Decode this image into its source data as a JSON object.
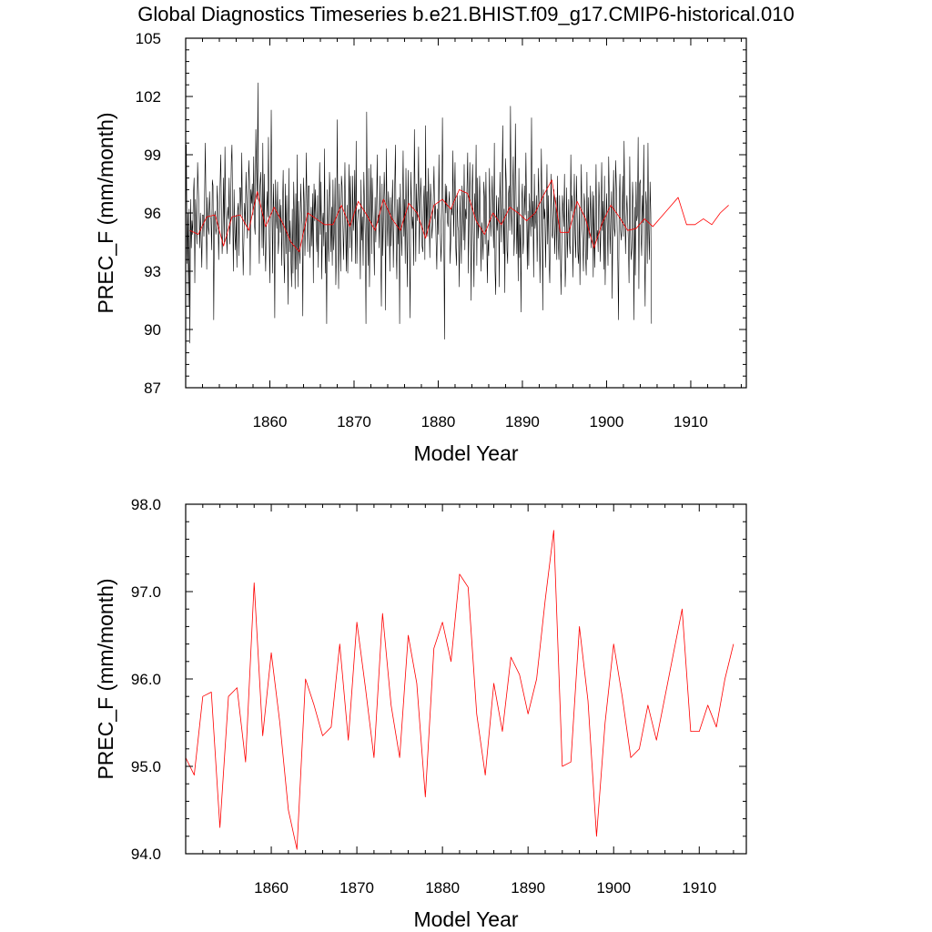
{
  "figure": {
    "title": "Global Diagnostics Timeseries b.e21.BHIST.f09_g17.CMIP6-historical.010"
  },
  "colors": {
    "monthly": "#000000",
    "annual": "#ff0000",
    "axis": "#000000"
  },
  "chart_data": [
    {
      "type": "line",
      "title": "",
      "xlabel": "Model Year",
      "ylabel": "PREC_F (mm/month)",
      "xlim": [
        1850,
        1916.6
      ],
      "ylim": [
        87,
        105
      ],
      "xticks": [
        1860,
        1870,
        1880,
        1890,
        1900,
        1910
      ],
      "yticks": [
        87,
        90,
        93,
        96,
        99,
        102,
        105
      ],
      "ytick_labels": [
        "87",
        "90",
        "93",
        "96",
        "99",
        "102",
        "105"
      ],
      "grid": false,
      "legend": "none",
      "series": [
        {
          "color": "#000000",
          "x_start": 1850.0,
          "x_step": 0.083333,
          "values": [
            94.6,
            99.5,
            93.4,
            96.0,
            91.2,
            96.2,
            89.3,
            96.7,
            94.2,
            95.6,
            94.9,
            96.9,
            97.8,
            92.4,
            96.7,
            95.3,
            94.4,
            98.6,
            97.3,
            96.2,
            94.2,
            96.0,
            94.8,
            93.2,
            95.9,
            95.9,
            94.8,
            96.9,
            99.6,
            96.2,
            93.1,
            96.8,
            95.3,
            94.9,
            97.1,
            95.8,
            95.7,
            94.1,
            97.7,
            97.4,
            90.5,
            95.8,
            96.1,
            94.9,
            95.2,
            97.4,
            96.3,
            93.6,
            95.6,
            97.4,
            99.0,
            96.1,
            93.9,
            95.0,
            97.8,
            94.5,
            99.4,
            96.3,
            95.0,
            93.9,
            96.3,
            95.7,
            97.8,
            94.4,
            95.8,
            98.6,
            99.5,
            96.0,
            93.0,
            97.2,
            95.0,
            94.1,
            95.9,
            93.2,
            96.1,
            96.5,
            93.8,
            97.3,
            97.3,
            95.9,
            99.1,
            95.5,
            92.8,
            94.6,
            96.5,
            95.4,
            98.1,
            96.6,
            94.7,
            96.5,
            98.7,
            97.6,
            92.8,
            97.2,
            96.5,
            97.5,
            95.9,
            98.9,
            95.4,
            94.9,
            100.3,
            98.3,
            96.7,
            102.7,
            95.9,
            93.4,
            97.4,
            98.1,
            96.4,
            94.2,
            99.6,
            93.8,
            98.0,
            94.6,
            93.0,
            95.1,
            97.1,
            95.8,
            99.9,
            94.9,
            92.4,
            96.2,
            101.3,
            96.6,
            92.9,
            97.5,
            95.8,
            90.6,
            97.7,
            95.8,
            95.2,
            97.6,
            93.9,
            94.8,
            96.7,
            95.0,
            96.4,
            93.3,
            96.1,
            98.2,
            93.7,
            92.4,
            97.5,
            93.9,
            96.9,
            94.8,
            91.3,
            98.3,
            94.0,
            95.6,
            93.6,
            92.2,
            96.2,
            92.9,
            97.6,
            95.6,
            92.1,
            97.0,
            93.1,
            99.0,
            92.2,
            96.6,
            94.1,
            93.4,
            97.5,
            96.1,
            95.4,
            90.7,
            97.8,
            96.6,
            93.8,
            95.7,
            99.1,
            96.1,
            94.0,
            97.4,
            97.4,
            93.7,
            94.8,
            96.3,
            94.3,
            97.0,
            92.4,
            97.5,
            95.6,
            97.2,
            95.0,
            94.0,
            96.9,
            93.2,
            96.0,
            98.6,
            94.9,
            97.6,
            92.6,
            95.5,
            96.0,
            94.3,
            99.3,
            92.9,
            95.0,
            90.3,
            97.2,
            94.6,
            93.5,
            98.1,
            96.8,
            94.0,
            96.3,
            93.3,
            97.7,
            94.1,
            95.1,
            97.8,
            92.3,
            93.9,
            100.8,
            95.3,
            92.1,
            97.5,
            95.1,
            93.0,
            97.9,
            97.4,
            95.6,
            93.6,
            95.6,
            98.6,
            95.2,
            93.0,
            96.4,
            92.9,
            95.9,
            98.5,
            94.2,
            97.9,
            95.5,
            93.5,
            97.9,
            95.1,
            95.9,
            98.2,
            93.4,
            99.7,
            93.4,
            95.5,
            96.1,
            96.2,
            95.9,
            92.6,
            97.7,
            94.6,
            95.8,
            93.3,
            98.1,
            96.3,
            94.8,
            90.3,
            101.2,
            95.9,
            93.3,
            98.3,
            92.2,
            95.4,
            98.5,
            93.9,
            97.8,
            96.1,
            95.0,
            92.8,
            96.8,
            94.5,
            96.0,
            99.0,
            95.5,
            95.9,
            94.2,
            97.9,
            94.3,
            91.2,
            97.5,
            93.8,
            95.8,
            98.1,
            96.7,
            91.0,
            99.3,
            96.1,
            94.3,
            97.1,
            96.2,
            93.0,
            96.8,
            94.3,
            96.2,
            97.7,
            93.2,
            95.5,
            97.4,
            99.5,
            94.5,
            92.6,
            96.7,
            94.4,
            96.8,
            90.3,
            97.5,
            95.3,
            93.8,
            96.0,
            99.2,
            94.8,
            96.7,
            93.4,
            98.3,
            95.2,
            92.2,
            98.2,
            96.0,
            94.0,
            90.6,
            98.1,
            96.4,
            95.2,
            95.8,
            93.3,
            100.3,
            96.9,
            93.5,
            97.5,
            95.6,
            96.7,
            99.4,
            93.9,
            95.9,
            97.8,
            96.7,
            94.3,
            94.0,
            96.5,
            97.4,
            93.6,
            100.5,
            94.8,
            97.1,
            94.8,
            98.3,
            95.9,
            93.7,
            97.5,
            96.6,
            94.7,
            95.4,
            96.8,
            98.4,
            95.7,
            96.4,
            94.5,
            93.1,
            96.2,
            94.9,
            99.0,
            96.0,
            94.9,
            93.5,
            94.9,
            100.9,
            96.5,
            94.7,
            89.5,
            97.5,
            96.0,
            97.4,
            95.6,
            95.3,
            96.5,
            97.1,
            93.4,
            94.7,
            96.3,
            95.9,
            99.2,
            94.8,
            96.7,
            98.6,
            94.2,
            93.3,
            97.0,
            95.3,
            95.1,
            92.2,
            96.9,
            95.3,
            93.4,
            97.4,
            96.4,
            94.6,
            98.5,
            94.1,
            96.2,
            95.7,
            97.3,
            99.1,
            92.9,
            95.9,
            98.6,
            95.8,
            91.5,
            96.9,
            98.5,
            95.0,
            92.2,
            97.0,
            95.7,
            99.5,
            93.3,
            97.8,
            94.7,
            95.6,
            97.9,
            96.2,
            93.0,
            95.5,
            94.8,
            93.6,
            97.6,
            96.8,
            94.4,
            98.1,
            95.1,
            92.4,
            94.6,
            93.8,
            98.3,
            96.1,
            94.8,
            96.2,
            97.9,
            95.5,
            94.2,
            99.6,
            93.0,
            91.8,
            96.9,
            95.1,
            95.7,
            96.8,
            92.2,
            98.1,
            96.4,
            94.5,
            97.7,
            100.5,
            93.9,
            96.2,
            91.9,
            98.8,
            97.6,
            94.1,
            93.4,
            96.9,
            97.4,
            95.1,
            101.5,
            96.4,
            94.9,
            97.2,
            98.9,
            93.8,
            95.0,
            100.6,
            96.7,
            93.9,
            96.3,
            92.5,
            98.3,
            93.7,
            95.4,
            90.9,
            96.7,
            97.5,
            93.9,
            94.7,
            97.4,
            95.9,
            99.1,
            96.2,
            93.1,
            96.1,
            93.3,
            97.0,
            95.9,
            94.8,
            100.9,
            95.3,
            96.6,
            92.7,
            98.0,
            95.2,
            95.7,
            96.9,
            93.5,
            96.2,
            98.3,
            95.9,
            92.4,
            95.1,
            99.3,
            96.4,
            91.0,
            97.2,
            95.7,
            96.2,
            93.2,
            95.7,
            98.5,
            94.4,
            96.9,
            93.6,
            92.4,
            95.8,
            98.0,
            94.9,
            94.7,
            95.9,
            97.2,
            93.9,
            95.3,
            96.8,
            93.6,
            97.9,
            94.6,
            93.6,
            96.9,
            95.0,
            91.8,
            94.0,
            96.9,
            96.2,
            95.3,
            98.0,
            92.2,
            93.6,
            97.3,
            93.7,
            95.1,
            96.7,
            94.4,
            93.9,
            99.0,
            96.1,
            96.9,
            92.7,
            95.4,
            98.0,
            94.9,
            93.7,
            97.9,
            96.0,
            94.0,
            93.4,
            96.3,
            92.3,
            95.5,
            98.5,
            95.4,
            94.6,
            93.0,
            97.0,
            96.4,
            93.8,
            92.8,
            98.1,
            93.6,
            96.8,
            94.7,
            95.4,
            97.4,
            94.2,
            95.4,
            97.1,
            92.7,
            96.9,
            93.2,
            95.2,
            98.5,
            94.6,
            95.1,
            94.0,
            97.6,
            96.3,
            93.5,
            95.4,
            98.6,
            95.1,
            96.6,
            93.1,
            97.9,
            92.3,
            95.0,
            97.0,
            95.4,
            93.3,
            98.9,
            96.5,
            93.9,
            95.6,
            97.1,
            91.6,
            96.0,
            98.2,
            95.2,
            94.8,
            98.7,
            97.3,
            95.3,
            93.5,
            90.5,
            96.6,
            98.0,
            95.1,
            94.6,
            95.7,
            97.9,
            94.8,
            99.7,
            96.3,
            93.9,
            95.8,
            96.9,
            95.7,
            94.6,
            92.4,
            98.9,
            95.1,
            93.6,
            94.2,
            97.6,
            96.2,
            90.5,
            96.3,
            92.8,
            97.6,
            95.6,
            95.9,
            99.9,
            92.1,
            97.5,
            97.7,
            94.9,
            93.8,
            96.9,
            95.5,
            99.5,
            94.1,
            91.2,
            97.1,
            96.3,
            93.4,
            99.6,
            95.2,
            93.6,
            97.6,
            96.0,
            90.3
          ]
        },
        {
          "color": "#ff0000",
          "x_start": 1850.5,
          "x_step": 1,
          "values": [
            95.1,
            94.9,
            95.8,
            95.9,
            94.3,
            95.8,
            95.9,
            95.1,
            97.1,
            95.3,
            96.3,
            95.5,
            94.5,
            94.0,
            96.0,
            95.7,
            95.4,
            95.4,
            96.4,
            95.3,
            96.6,
            95.9,
            95.1,
            96.7,
            95.7,
            95.1,
            96.5,
            96.0,
            94.7,
            96.4,
            96.7,
            96.2,
            97.2,
            97.0,
            95.6,
            94.9,
            96.0,
            95.4,
            96.3,
            96.0,
            95.6,
            96.0,
            96.9,
            97.7,
            95.0,
            95.0,
            96.6,
            95.7,
            94.2,
            95.5,
            96.4,
            95.8,
            95.1,
            95.2,
            95.7,
            95.3,
            95.8,
            96.3,
            96.8,
            95.4,
            95.4,
            95.7,
            95.4,
            96.0,
            96.4
          ]
        }
      ]
    },
    {
      "type": "line",
      "title": "",
      "xlabel": "Model Year",
      "ylabel": "PREC_F (mm/month)",
      "xlim": [
        1850,
        1915.5
      ],
      "ylim": [
        94.0,
        98.0
      ],
      "xticks": [
        1860,
        1870,
        1880,
        1890,
        1900,
        1910
      ],
      "yticks": [
        94.0,
        95.0,
        96.0,
        97.0,
        98.0
      ],
      "ytick_labels": [
        "94.0",
        "95.0",
        "96.0",
        "97.0",
        "98.0"
      ],
      "grid": false,
      "legend": "none",
      "series": [
        {
          "color": "#ff0000",
          "x_start": 1850.0,
          "x_step": 1,
          "values": [
            95.1,
            94.9,
            95.8,
            95.85,
            94.3,
            95.8,
            95.9,
            95.05,
            97.1,
            95.35,
            96.3,
            95.5,
            94.5,
            94.05,
            96.0,
            95.7,
            95.35,
            95.45,
            96.4,
            95.3,
            96.65,
            95.9,
            95.1,
            96.75,
            95.7,
            95.1,
            96.5,
            95.95,
            94.65,
            96.35,
            96.65,
            96.2,
            97.2,
            97.05,
            95.6,
            94.9,
            95.95,
            95.4,
            96.25,
            96.05,
            95.6,
            96.0,
            96.9,
            97.7,
            95.0,
            95.05,
            96.6,
            95.75,
            94.2,
            95.5,
            96.4,
            95.8,
            95.1,
            95.2,
            95.7,
            95.3,
            95.8,
            96.3,
            96.8,
            95.4,
            95.4,
            95.7,
            95.45,
            96.0,
            96.4
          ]
        }
      ]
    }
  ]
}
